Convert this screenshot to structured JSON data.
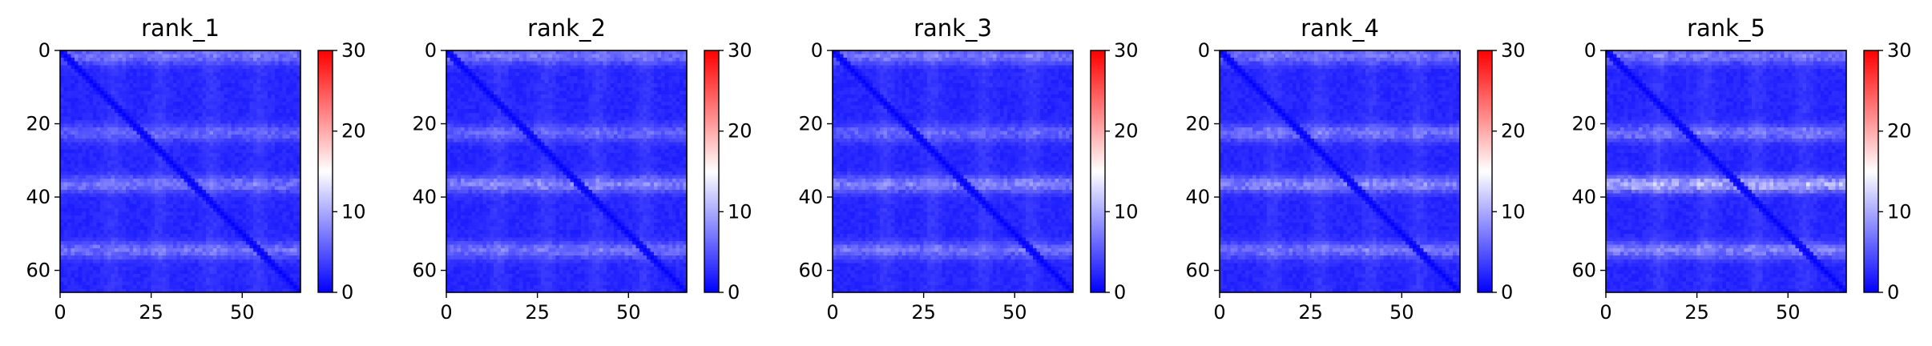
{
  "chart_data": [
    {
      "type": "heatmap",
      "title": "rank_1",
      "x_ticks": [
        0,
        25,
        50
      ],
      "y_ticks": [
        0,
        20,
        40,
        60
      ],
      "x_range": [
        0,
        66
      ],
      "y_range": [
        0,
        66
      ],
      "colorbar": {
        "range": [
          0,
          30
        ],
        "ticks": [
          0,
          10,
          20,
          30
        ],
        "colormap": "bwr"
      },
      "band_rows": [
        {
          "row": 1,
          "strength": 5
        },
        {
          "row": 22,
          "strength": 4
        },
        {
          "row": 36,
          "strength": 5
        },
        {
          "row": 54,
          "strength": 5
        }
      ],
      "column_bands": [
        14,
        27,
        41,
        54
      ]
    },
    {
      "type": "heatmap",
      "title": "rank_2",
      "x_ticks": [
        0,
        25,
        50
      ],
      "y_ticks": [
        0,
        20,
        40,
        60
      ],
      "x_range": [
        0,
        66
      ],
      "y_range": [
        0,
        66
      ],
      "colorbar": {
        "range": [
          0,
          30
        ],
        "ticks": [
          0,
          10,
          20,
          30
        ],
        "colormap": "bwr"
      },
      "band_rows": [
        {
          "row": 1,
          "strength": 5
        },
        {
          "row": 22,
          "strength": 4
        },
        {
          "row": 36,
          "strength": 6
        },
        {
          "row": 54,
          "strength": 5
        }
      ],
      "column_bands": [
        14,
        27,
        41,
        54
      ]
    },
    {
      "type": "heatmap",
      "title": "rank_3",
      "x_ticks": [
        0,
        25,
        50
      ],
      "y_ticks": [
        0,
        20,
        40,
        60
      ],
      "x_range": [
        0,
        66
      ],
      "y_range": [
        0,
        66
      ],
      "colorbar": {
        "range": [
          0,
          30
        ],
        "ticks": [
          0,
          10,
          20,
          30
        ],
        "colormap": "bwr"
      },
      "band_rows": [
        {
          "row": 1,
          "strength": 5
        },
        {
          "row": 22,
          "strength": 4
        },
        {
          "row": 36,
          "strength": 6
        },
        {
          "row": 54,
          "strength": 5
        }
      ],
      "column_bands": [
        14,
        27,
        41,
        54
      ]
    },
    {
      "type": "heatmap",
      "title": "rank_4",
      "x_ticks": [
        0,
        25,
        50
      ],
      "y_ticks": [
        0,
        20,
        40,
        60
      ],
      "x_range": [
        0,
        66
      ],
      "y_range": [
        0,
        66
      ],
      "colorbar": {
        "range": [
          0,
          30
        ],
        "ticks": [
          0,
          10,
          20,
          30
        ],
        "colormap": "bwr"
      },
      "band_rows": [
        {
          "row": 1,
          "strength": 5
        },
        {
          "row": 22,
          "strength": 5
        },
        {
          "row": 36,
          "strength": 6
        },
        {
          "row": 54,
          "strength": 5
        }
      ],
      "column_bands": [
        14,
        27,
        41,
        54
      ]
    },
    {
      "type": "heatmap",
      "title": "rank_5",
      "x_ticks": [
        0,
        25,
        50
      ],
      "y_ticks": [
        0,
        20,
        40,
        60
      ],
      "x_range": [
        0,
        66
      ],
      "y_range": [
        0,
        66
      ],
      "colorbar": {
        "range": [
          0,
          30
        ],
        "ticks": [
          0,
          10,
          20,
          30
        ],
        "colormap": "bwr"
      },
      "band_rows": [
        {
          "row": 1,
          "strength": 5
        },
        {
          "row": 22,
          "strength": 5
        },
        {
          "row": 36,
          "strength": 9
        },
        {
          "row": 54,
          "strength": 6
        }
      ],
      "column_bands": [
        14,
        27,
        41,
        54
      ]
    }
  ]
}
